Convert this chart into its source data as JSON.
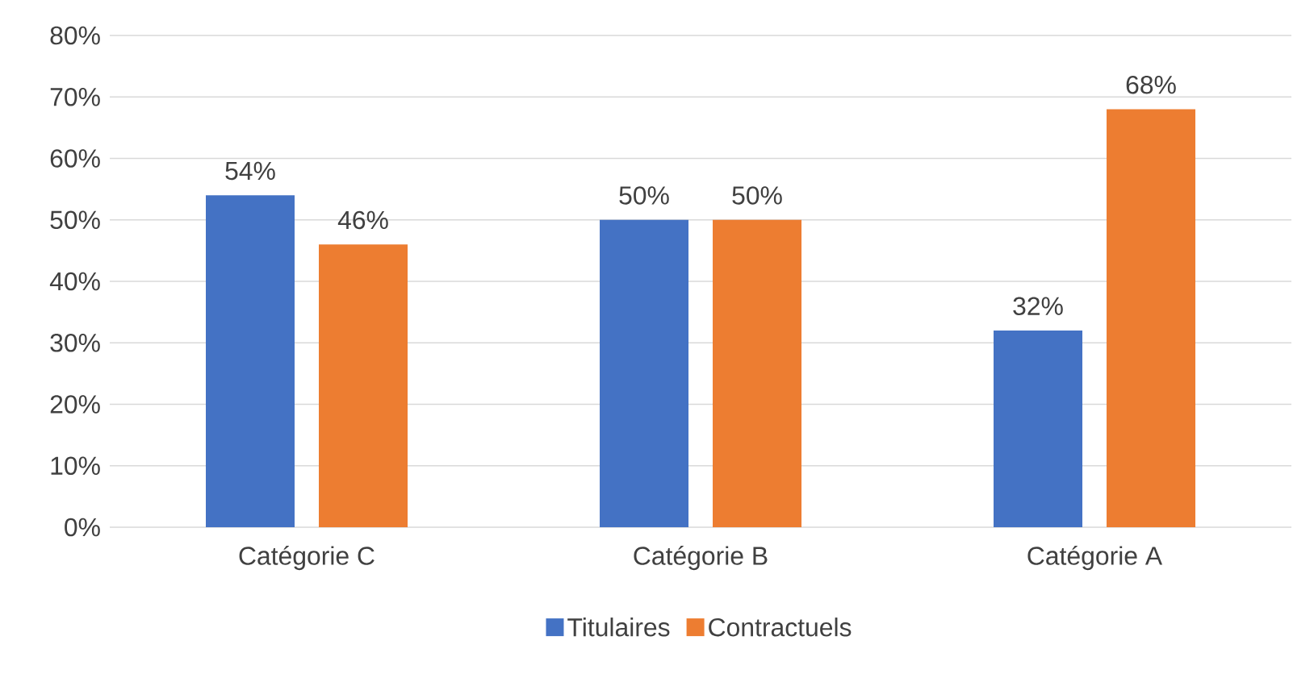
{
  "chart_data": {
    "type": "bar",
    "categories": [
      "Catégorie C",
      "Catégorie B",
      "Catégorie A"
    ],
    "series": [
      {
        "name": "Titulaires",
        "color": "#4472c4",
        "values": [
          54,
          50,
          32
        ],
        "value_labels": [
          "54%",
          "50%",
          "32%"
        ]
      },
      {
        "name": "Contractuels",
        "color": "#ed7d31",
        "values": [
          46,
          50,
          68
        ],
        "value_labels": [
          "46%",
          "50%",
          "68%"
        ]
      }
    ],
    "ylim": [
      0,
      80
    ],
    "yticks": [
      {
        "value": 0,
        "label": "0%"
      },
      {
        "value": 10,
        "label": "10%"
      },
      {
        "value": 20,
        "label": "20%"
      },
      {
        "value": 30,
        "label": "30%"
      },
      {
        "value": 40,
        "label": "40%"
      },
      {
        "value": 50,
        "label": "50%"
      },
      {
        "value": 60,
        "label": "60%"
      },
      {
        "value": 70,
        "label": "70%"
      },
      {
        "value": 80,
        "label": "80%"
      }
    ],
    "grid": "y",
    "legend": "bottom"
  }
}
